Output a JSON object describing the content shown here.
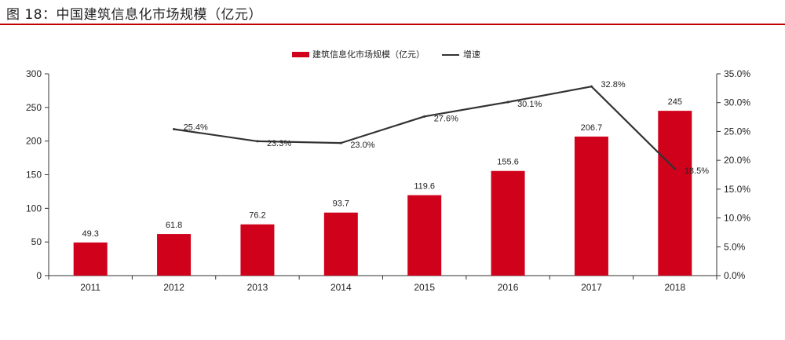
{
  "figure_title": "图 18：中国建筑信息化市场规模（亿元）",
  "chart_data": {
    "type": "bar",
    "categories": [
      "2011",
      "2012",
      "2013",
      "2014",
      "2015",
      "2016",
      "2017",
      "2018"
    ],
    "series": [
      {
        "name": "建筑信息化市场规模（亿元）",
        "type": "bar",
        "axis": "left",
        "values": [
          49.3,
          61.8,
          76.2,
          93.7,
          119.6,
          155.6,
          206.7,
          245
        ],
        "labels": [
          "49.3",
          "61.8",
          "76.2",
          "93.7",
          "119.6",
          "155.6",
          "206.7",
          "245"
        ],
        "color": "#d0021b"
      },
      {
        "name": "增速",
        "type": "line",
        "axis": "right",
        "values": [
          null,
          25.4,
          23.3,
          23.0,
          27.6,
          30.1,
          32.8,
          18.5
        ],
        "labels": [
          "",
          "25.4%",
          "23.3%",
          "23.0%",
          "27.6%",
          "30.1%",
          "32.8%",
          "18.5%"
        ],
        "color": "#333333"
      }
    ],
    "ylim_left": [
      0,
      300
    ],
    "yticks_left": [
      "0",
      "50",
      "100",
      "150",
      "200",
      "250",
      "300"
    ],
    "ylim_right": [
      0,
      35
    ],
    "yticks_right": [
      "0.0%",
      "5.0%",
      "10.0%",
      "15.0%",
      "20.0%",
      "25.0%",
      "30.0%",
      "35.0%"
    ],
    "legend_position": "top-center",
    "grid": false
  }
}
